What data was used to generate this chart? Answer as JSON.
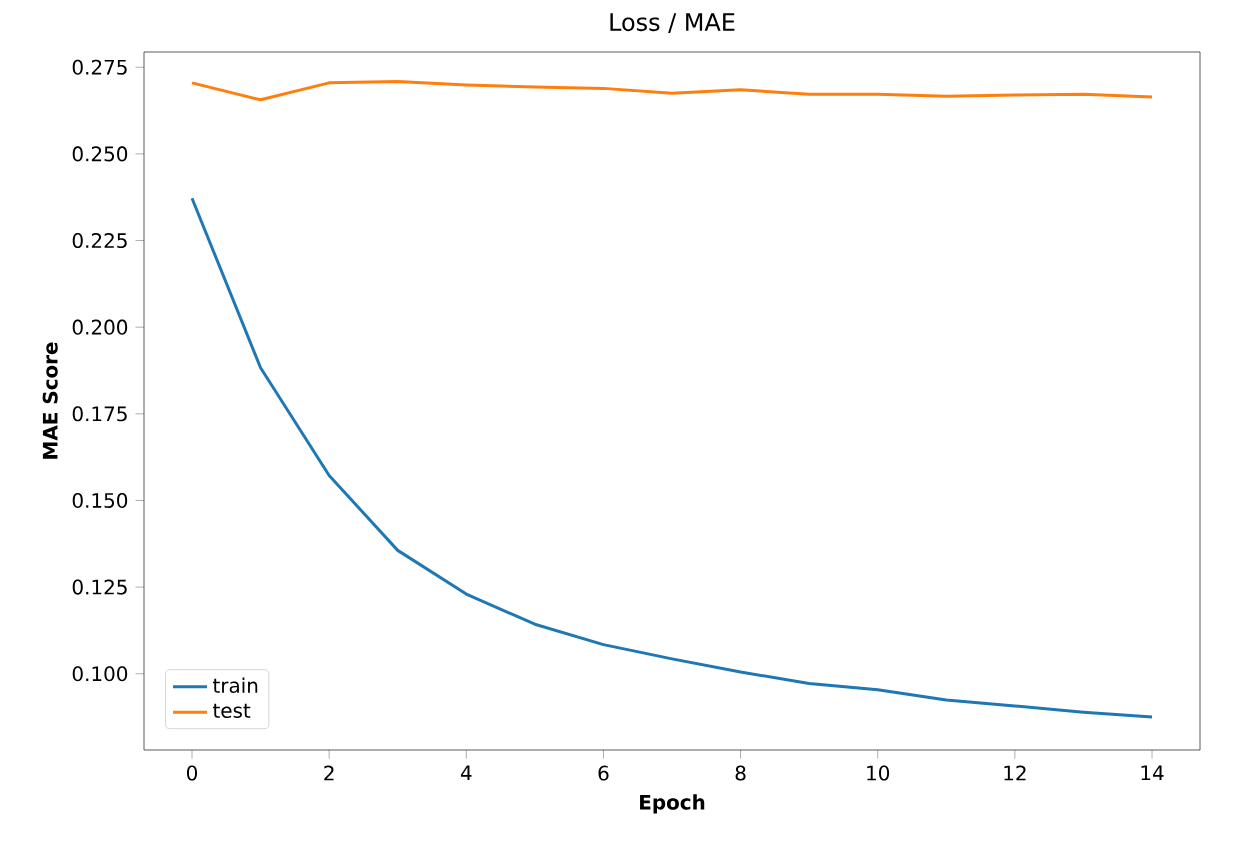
{
  "chart_data": {
    "type": "line",
    "title": "Loss / MAE",
    "xlabel": "Epoch",
    "ylabel": "MAE Score",
    "x": [
      0,
      1,
      2,
      3,
      4,
      5,
      6,
      7,
      8,
      9,
      10,
      11,
      12,
      13,
      14
    ],
    "series": [
      {
        "name": "train",
        "color": "#1f77b4",
        "values": [
          0.2372,
          0.1883,
          0.1572,
          0.1356,
          0.123,
          0.1143,
          0.1084,
          0.1043,
          0.1005,
          0.0972,
          0.0954,
          0.0924,
          0.0907,
          0.0889,
          0.0875
        ]
      },
      {
        "name": "test",
        "color": "#ff7f0e",
        "values": [
          0.2705,
          0.2656,
          0.2705,
          0.2709,
          0.2699,
          0.2693,
          0.2689,
          0.2675,
          0.2685,
          0.2672,
          0.2672,
          0.2666,
          0.267,
          0.2672,
          0.2664
        ]
      }
    ],
    "xlim": [
      -0.7,
      14.7
    ],
    "ylim": [
      0.078,
      0.2794
    ],
    "xticks": [
      0,
      2,
      4,
      6,
      8,
      10,
      12,
      14
    ],
    "yticks": [
      {
        "value": 0.1,
        "label": "0.100"
      },
      {
        "value": 0.125,
        "label": "0.125"
      },
      {
        "value": 0.15,
        "label": "0.150"
      },
      {
        "value": 0.175,
        "label": "0.175"
      },
      {
        "value": 0.2,
        "label": "0.200"
      },
      {
        "value": 0.225,
        "label": "0.225"
      },
      {
        "value": 0.25,
        "label": "0.250"
      },
      {
        "value": 0.275,
        "label": "0.275"
      }
    ],
    "legend": "bottom left",
    "grid": false
  }
}
